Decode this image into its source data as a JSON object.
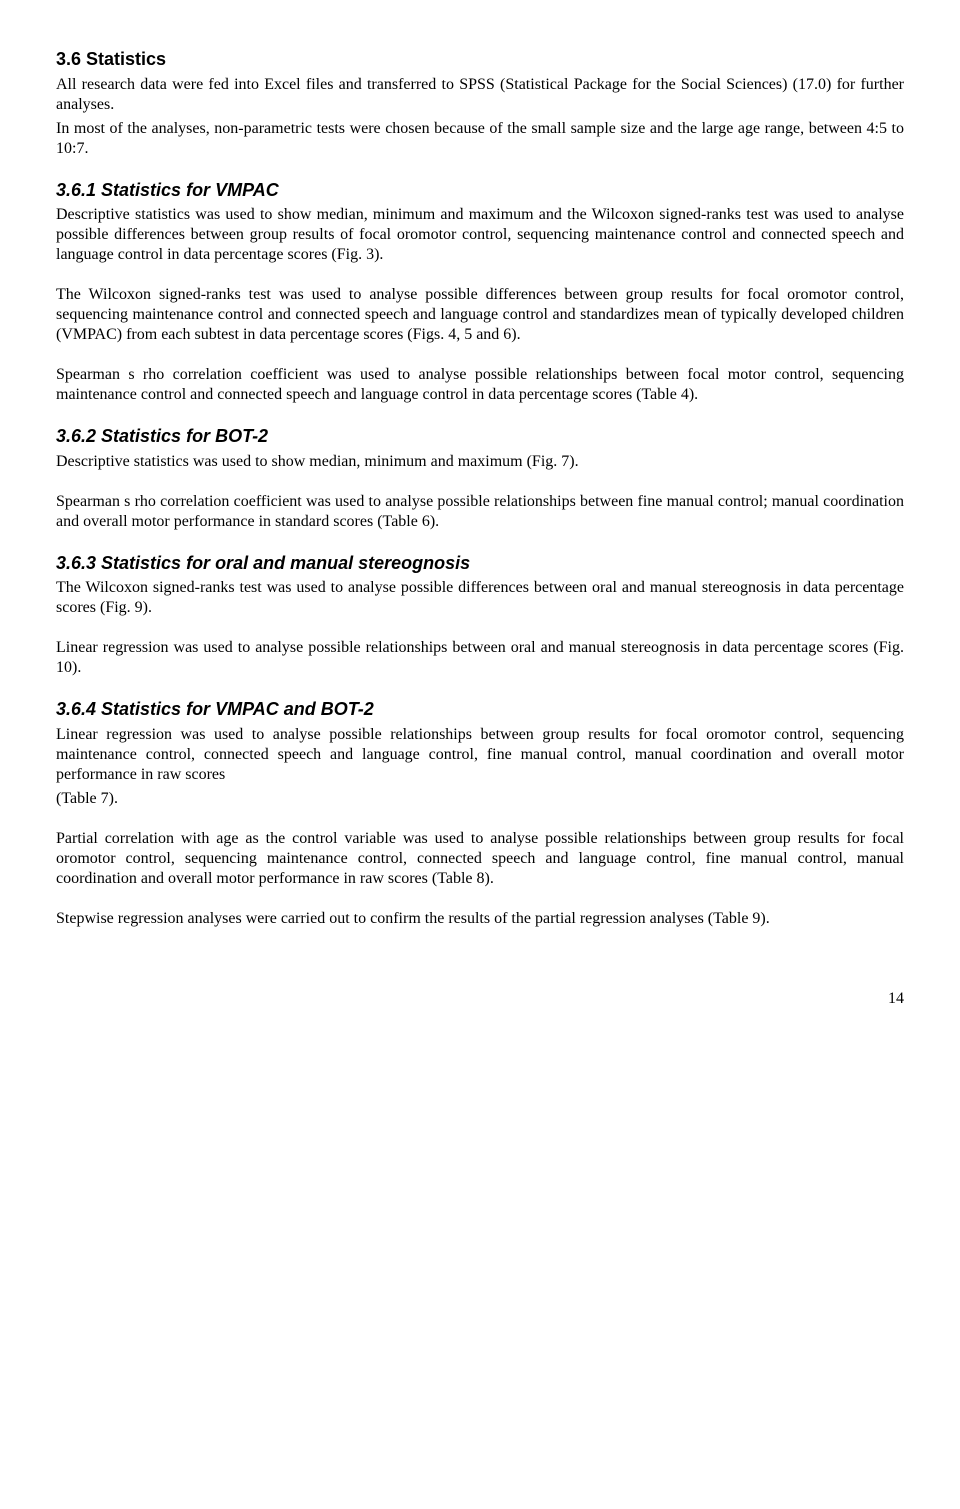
{
  "section": {
    "heading": "3.6 Statistics",
    "intro": "All research data were fed into Excel files and transferred to SPSS (Statistical Package for the Social Sciences) (17.0) for further analyses.",
    "intro2": "In most of the analyses, non-parametric tests were chosen because of the small sample size and the large age range, between 4:5 to 10:7."
  },
  "sub1": {
    "heading": "3.6.1 Statistics for VMPAC",
    "p1": "Descriptive statistics was used to show median, minimum and maximum and the Wilcoxon signed-ranks test was used to analyse possible differences between group results of focal oromotor control, sequencing maintenance control and connected speech and language control in data percentage scores (Fig. 3).",
    "p2": "The Wilcoxon signed-ranks test was used to analyse possible differences between group results for focal oromotor control, sequencing maintenance control and connected speech and language control and standardizes mean of typically developed children (VMPAC) from each subtest in data percentage scores (Figs. 4, 5 and 6).",
    "p3": "Spearman s rho correlation coefficient was used to analyse possible relationships between focal motor control, sequencing maintenance control and connected speech and language control in data percentage scores (Table 4)."
  },
  "sub2": {
    "heading": "3.6.2 Statistics for BOT-2",
    "p1": "Descriptive statistics was used to show median, minimum and maximum (Fig. 7).",
    "p2": "Spearman s rho correlation coefficient was used to analyse possible relationships between fine manual control; manual coordination and overall motor performance in standard scores (Table 6)."
  },
  "sub3": {
    "heading": "3.6.3 Statistics for oral and manual stereognosis",
    "p1": "The Wilcoxon signed-ranks test was used to analyse possible differences between oral and manual stereognosis in data percentage scores (Fig. 9).",
    "p2": "Linear regression was used to analyse possible relationships between oral and manual stereognosis in data percentage scores (Fig. 10)."
  },
  "sub4": {
    "heading": "3.6.4 Statistics for VMPAC and BOT-2",
    "p1": "Linear regression was used to analyse possible relationships between group results for focal oromotor control, sequencing maintenance control, connected speech and language control, fine manual control, manual coordination and overall motor performance in raw scores",
    "p1b": "(Table 7).",
    "p2": "Partial correlation with age as the control variable was used to analyse possible relationships between group results for focal oromotor control, sequencing maintenance control, connected speech and language control, fine manual control, manual coordination and overall motor performance in raw scores (Table 8).",
    "p3": "Stepwise regression analyses were carried out to confirm the results of the partial regression analyses (Table 9)."
  },
  "pageNumber": "14"
}
